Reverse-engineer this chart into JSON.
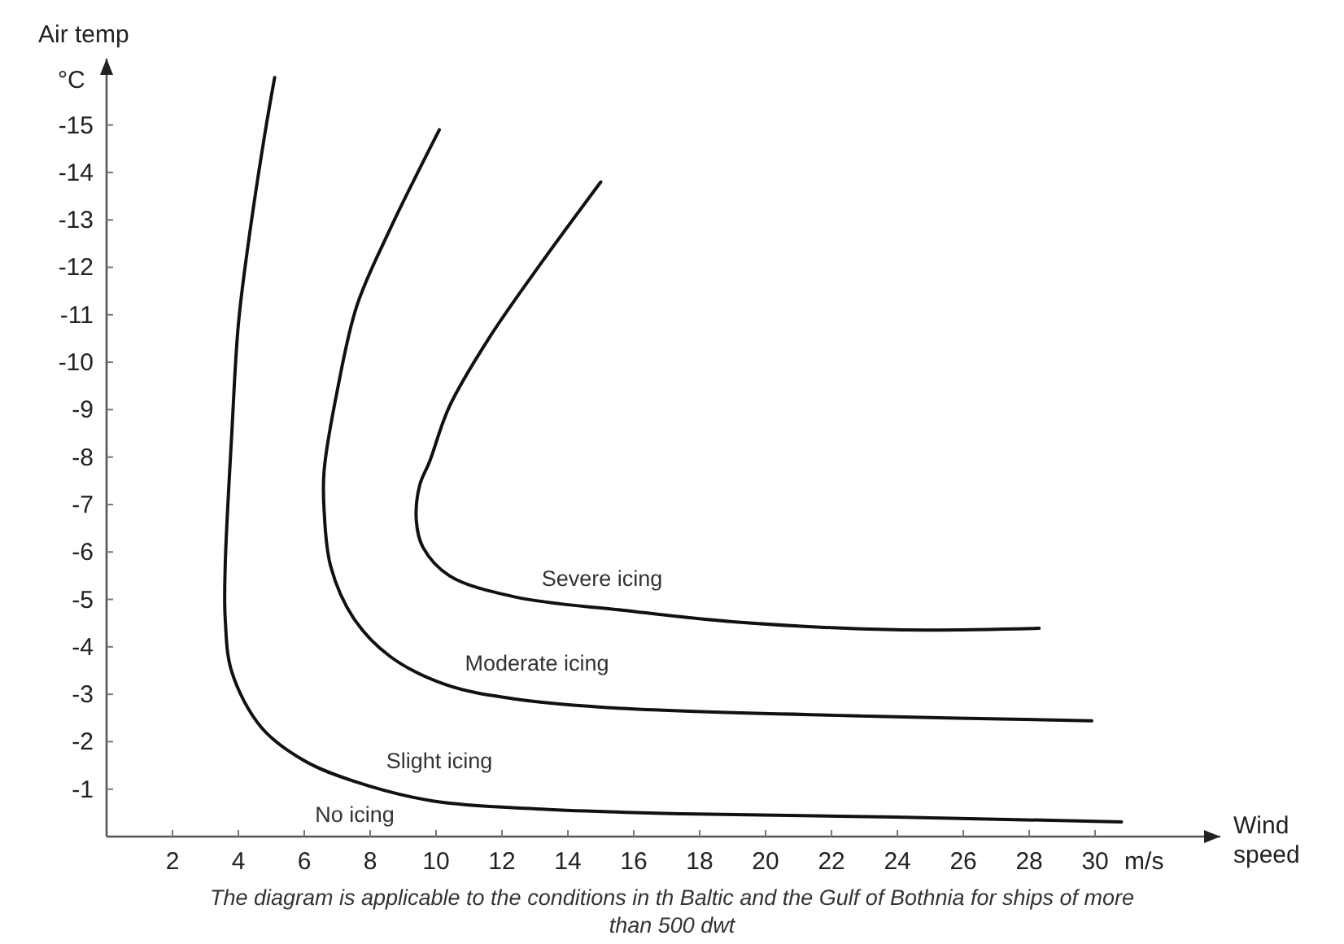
{
  "chart_data": {
    "type": "line",
    "xlabel": "m/s Wind speed",
    "ylabel": "Air temp °C",
    "xlim": [
      0,
      33.8
    ],
    "ylim": [
      0,
      -16.4
    ],
    "xticks": [
      2,
      4,
      6,
      8,
      10,
      12,
      14,
      16,
      18,
      20,
      22,
      24,
      26,
      28,
      30
    ],
    "yticks": [
      -1,
      -2,
      -3,
      -4,
      -5,
      -6,
      -7,
      -8,
      -9,
      -10,
      -11,
      -12,
      -13,
      -14,
      -15
    ],
    "grid": false,
    "marker": "none",
    "line_style": "solid",
    "series": [
      {
        "color": "#111111",
        "x": [
          5.1,
          4.8,
          4.3,
          4.0,
          3.8,
          3.6,
          3.6,
          3.8,
          4.7,
          6.0,
          7.5,
          9.9,
          13.2,
          17.5,
          23.9,
          30.8
        ],
        "values": [
          -16.0,
          -14.8,
          -12.5,
          -10.8,
          -8.5,
          -5.7,
          -4.6,
          -3.47,
          -2.3,
          -1.6,
          -1.17,
          -0.75,
          -0.58,
          -0.48,
          -0.41,
          -0.31
        ]
      },
      {
        "color": "#111111",
        "x": [
          10.1,
          8.6,
          7.6,
          7.0,
          6.6,
          6.6,
          6.8,
          7.5,
          8.6,
          10.3,
          12.4,
          15.7,
          23.1,
          29.9
        ],
        "values": [
          -14.9,
          -12.8,
          -11.2,
          -9.4,
          -7.7,
          -6.9,
          -5.7,
          -4.6,
          -3.8,
          -3.2,
          -2.9,
          -2.7,
          -2.54,
          -2.44
        ]
      },
      {
        "color": "#111111",
        "x": [
          15.0,
          13.2,
          11.6,
          10.4,
          9.8,
          9.5,
          9.4,
          9.6,
          10.4,
          12.4,
          15.7,
          19.0,
          23.9,
          28.3
        ],
        "values": [
          -13.8,
          -12.1,
          -10.5,
          -9.06,
          -7.9,
          -7.4,
          -6.66,
          -6.1,
          -5.5,
          -5.05,
          -4.77,
          -4.53,
          -4.36,
          -4.39
        ]
      }
    ],
    "annotations": [
      "Severe icing",
      "Moderate icing",
      "Slight icing",
      "No icing",
      "The diagram is applicable to the conditions in th Baltic and the Gulf of Bothnia for ships of more than 500 dwt"
    ]
  }
}
